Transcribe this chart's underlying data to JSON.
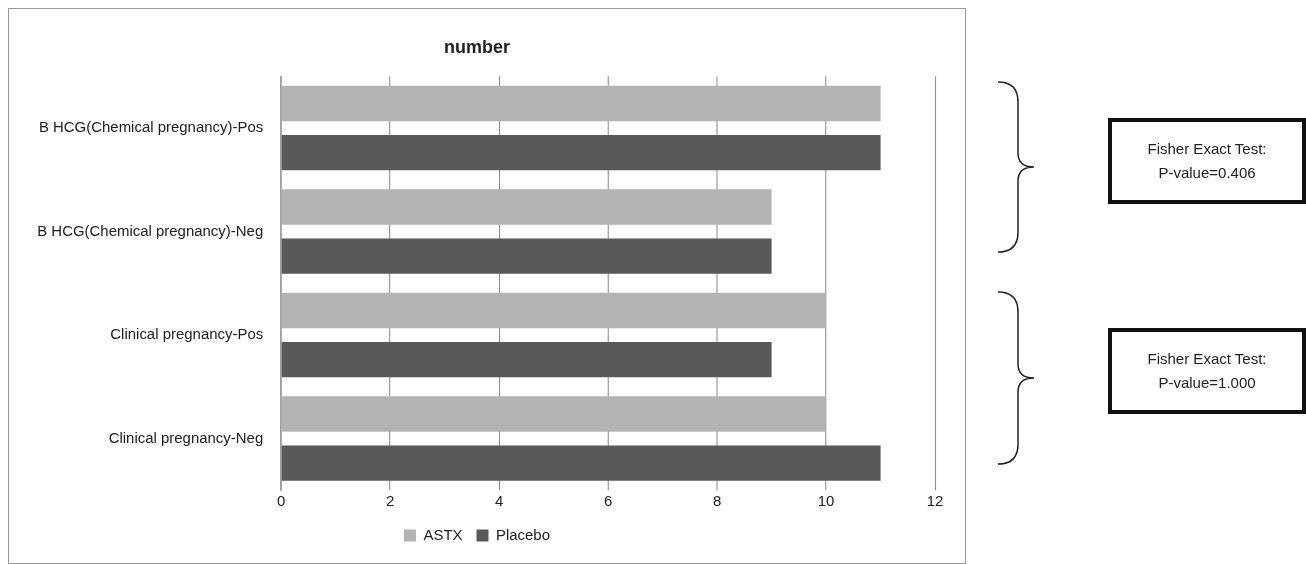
{
  "chart_data": {
    "type": "bar",
    "orientation": "horizontal",
    "title": "number",
    "categories": [
      "B HCG(Chemical pregnancy)-Pos",
      "B HCG(Chemical pregnancy)-Neg",
      "Clinical pregnancy-Pos",
      "Clinical pregnancy-Neg"
    ],
    "series": [
      {
        "name": "ASTX",
        "color": "#b3b3b3",
        "values": [
          11,
          9,
          10,
          10
        ]
      },
      {
        "name": "Placebo",
        "color": "#595959",
        "values": [
          11,
          9,
          9,
          11
        ]
      }
    ],
    "xlim": [
      0,
      12
    ],
    "xticks": [
      0,
      2,
      4,
      6,
      8,
      10,
      12
    ],
    "grid": "x",
    "legend": "bottom",
    "annotations": [
      "Fisher Exact Test:\nP-value=0.406",
      "Fisher Exact Test:\nP-value=1.000"
    ]
  }
}
